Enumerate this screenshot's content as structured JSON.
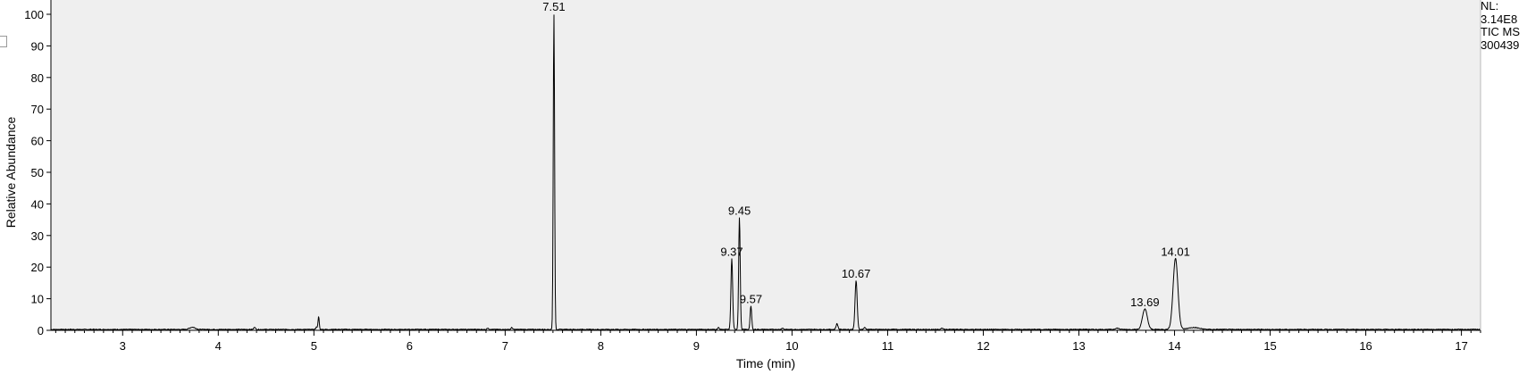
{
  "chart_data": {
    "type": "line",
    "xlabel": "Time (min)",
    "ylabel": "Relative Abundance",
    "xlim": [
      2.25,
      17.2
    ],
    "ylim": [
      0,
      100
    ],
    "x_ticks": [
      3,
      4,
      5,
      6,
      7,
      8,
      9,
      10,
      11,
      12,
      13,
      14,
      15,
      16,
      17
    ],
    "y_ticks": [
      0,
      10,
      20,
      30,
      40,
      50,
      60,
      70,
      80,
      90,
      100
    ],
    "grid": false,
    "background": "#efefef",
    "line_color": "#000000",
    "peaks": [
      {
        "rt": 3.73,
        "height": 0.7,
        "width": 0.03,
        "label": ""
      },
      {
        "rt": 4.38,
        "height": 0.8,
        "width": 0.008,
        "label": ""
      },
      {
        "rt": 5.03,
        "height": 0.8,
        "width": 0.01,
        "label": ""
      },
      {
        "rt": 5.05,
        "height": 4.0,
        "width": 0.006,
        "label": ""
      },
      {
        "rt": 6.82,
        "height": 0.5,
        "width": 0.008,
        "label": ""
      },
      {
        "rt": 7.07,
        "height": 0.6,
        "width": 0.008,
        "label": ""
      },
      {
        "rt": 7.51,
        "height": 100,
        "width": 0.007,
        "label": "7.51"
      },
      {
        "rt": 9.23,
        "height": 0.6,
        "width": 0.008,
        "label": ""
      },
      {
        "rt": 9.37,
        "height": 22.5,
        "width": 0.009,
        "label": "9.37"
      },
      {
        "rt": 9.45,
        "height": 35.5,
        "width": 0.008,
        "label": "9.45"
      },
      {
        "rt": 9.57,
        "height": 7.5,
        "width": 0.008,
        "label": "9.57"
      },
      {
        "rt": 9.9,
        "height": 0.4,
        "width": 0.01,
        "label": ""
      },
      {
        "rt": 10.47,
        "height": 1.8,
        "width": 0.01,
        "label": ""
      },
      {
        "rt": 10.67,
        "height": 15.5,
        "width": 0.011,
        "label": "10.67"
      },
      {
        "rt": 10.76,
        "height": 0.6,
        "width": 0.01,
        "label": ""
      },
      {
        "rt": 11.57,
        "height": 0.4,
        "width": 0.01,
        "label": ""
      },
      {
        "rt": 13.4,
        "height": 0.4,
        "width": 0.02,
        "label": ""
      },
      {
        "rt": 13.69,
        "height": 6.5,
        "width": 0.025,
        "label": "13.69"
      },
      {
        "rt": 14.01,
        "height": 22.5,
        "width": 0.025,
        "label": "14.01"
      },
      {
        "rt": 14.2,
        "height": 0.6,
        "width": 0.06,
        "label": ""
      }
    ]
  },
  "info": {
    "nl_label": "NL:",
    "nl_value": "3.14E8",
    "scan_type": "TIC  MS",
    "file_name": "300439"
  }
}
